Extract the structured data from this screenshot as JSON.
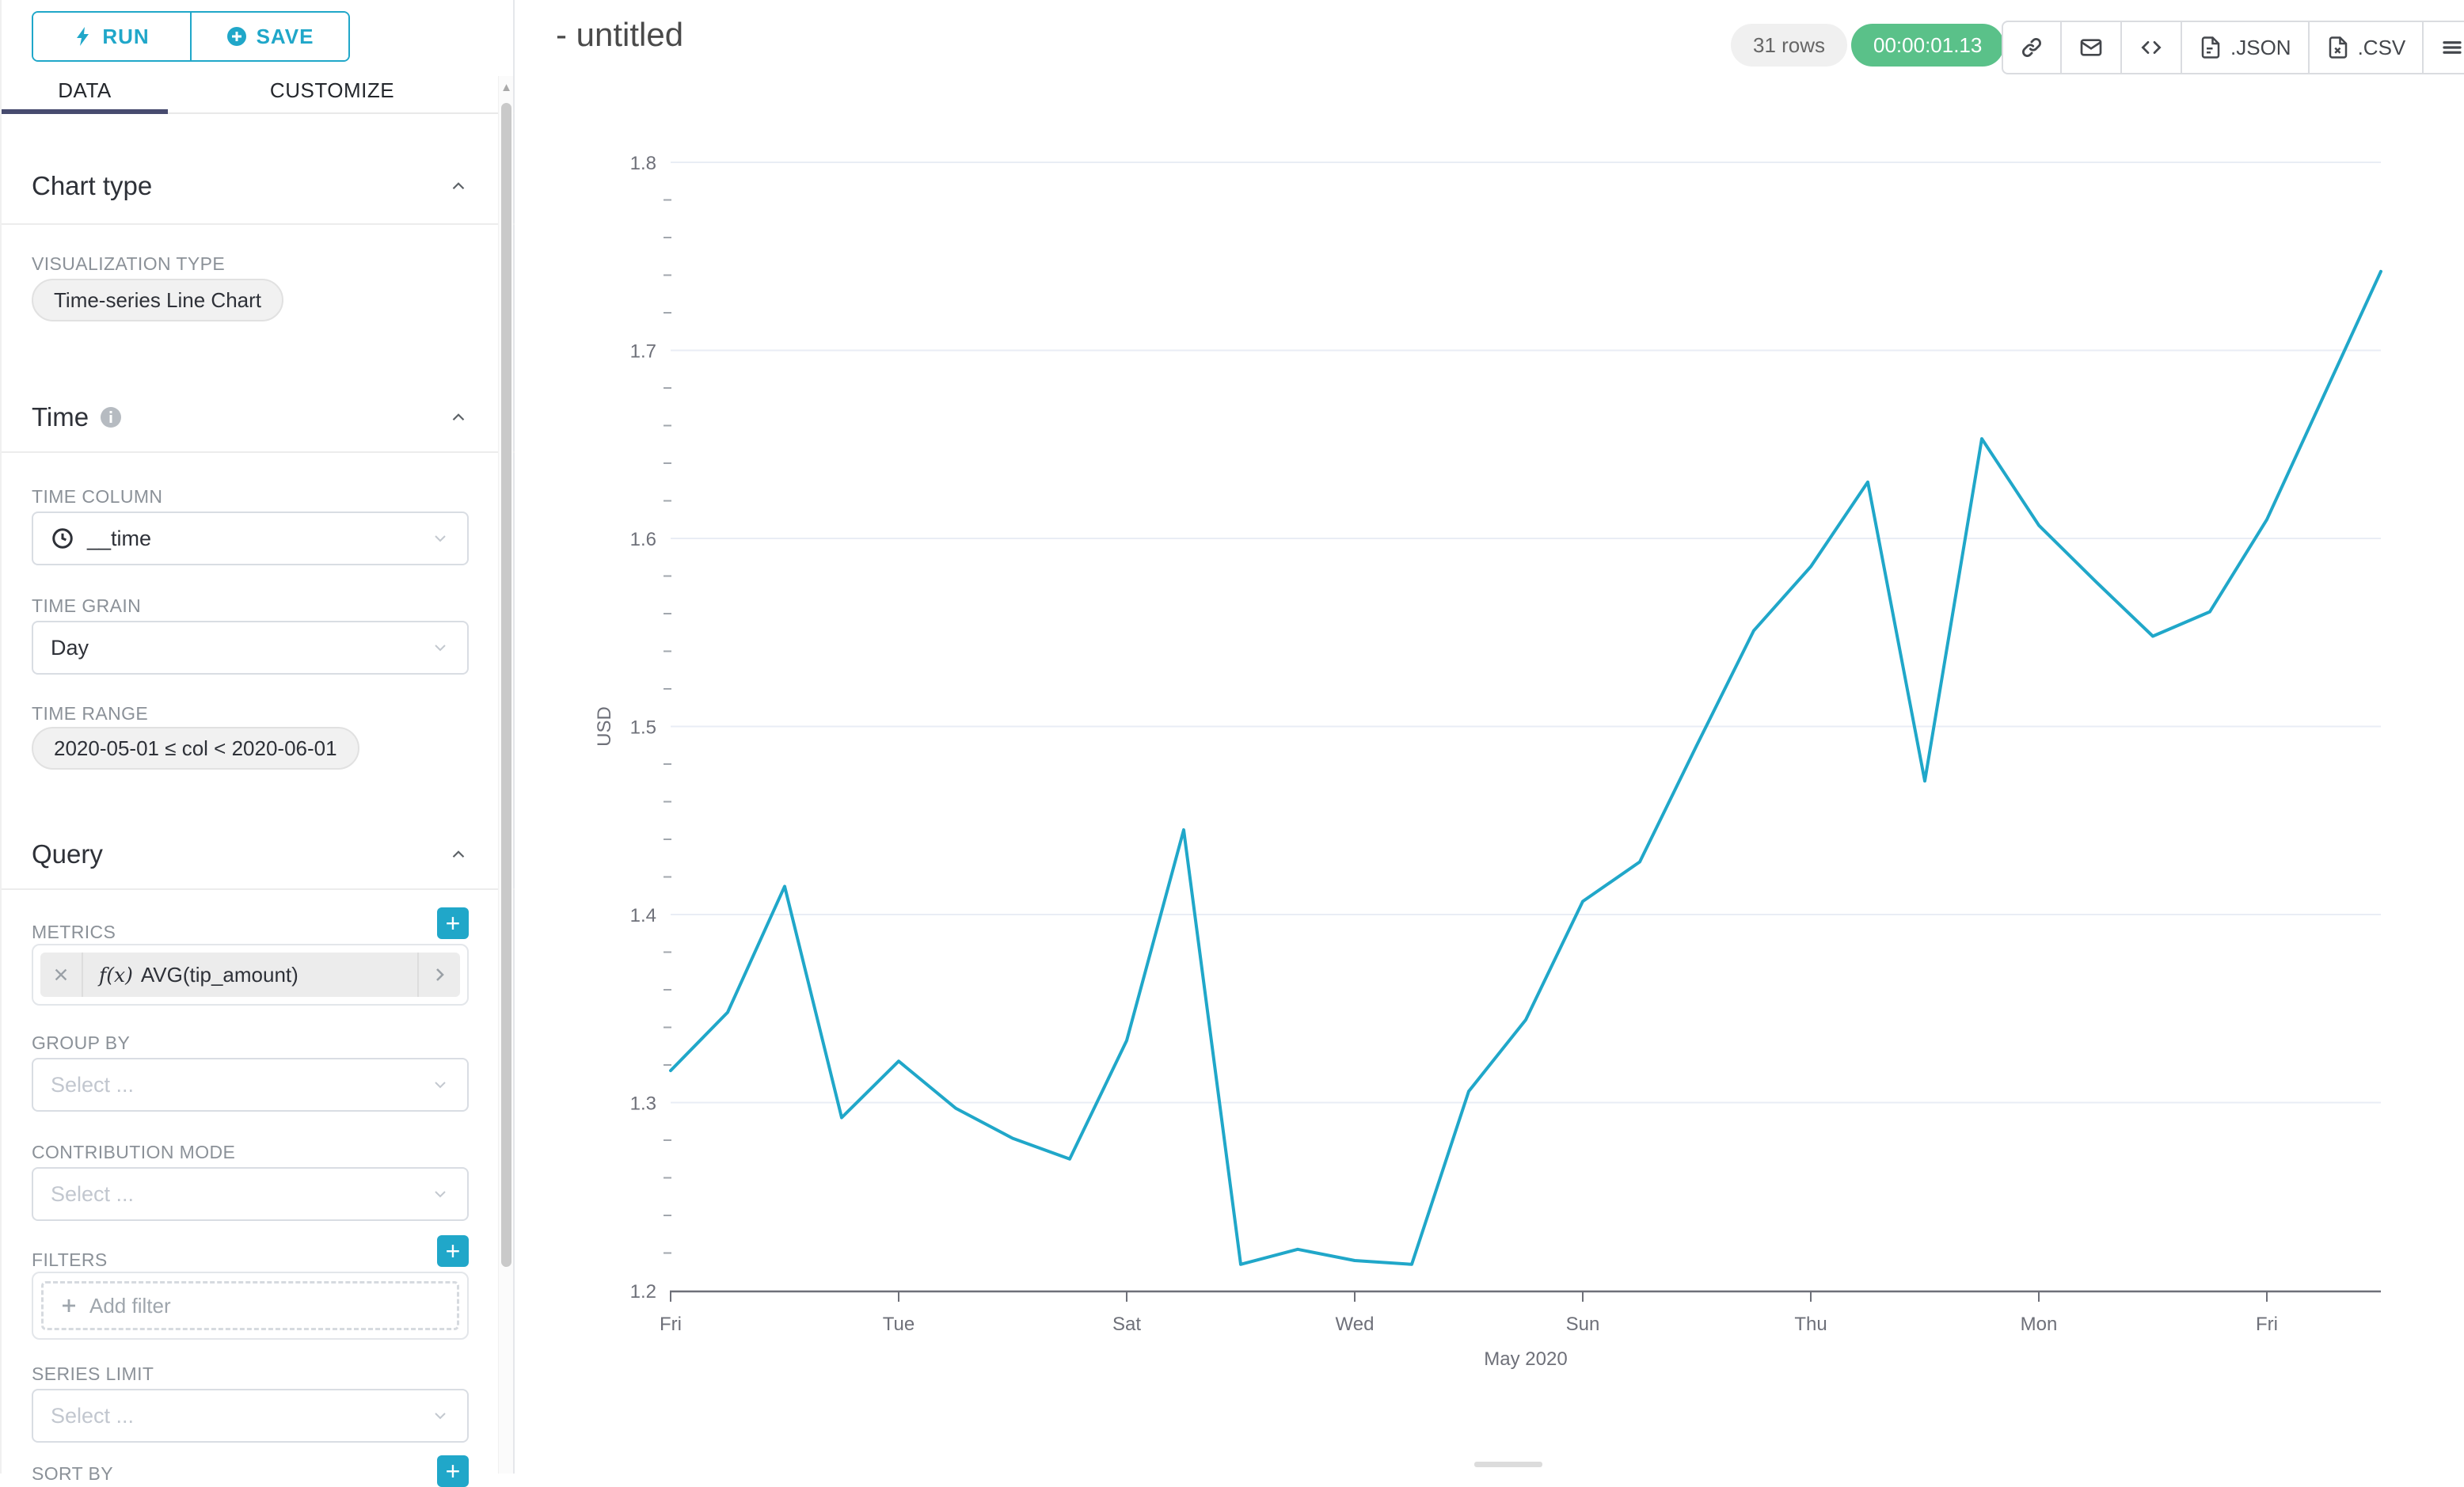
{
  "panel": {
    "run": "RUN",
    "save": "SAVE",
    "tabs": {
      "data": "DATA",
      "customize": "CUSTOMIZE"
    },
    "chart_type": {
      "title": "Chart type",
      "viz_label": "VISUALIZATION TYPE",
      "viz_value": "Time-series Line Chart"
    },
    "time": {
      "title": "Time",
      "col_label": "TIME COLUMN",
      "col_value": "__time",
      "grain_label": "TIME GRAIN",
      "grain_value": "Day",
      "range_label": "TIME RANGE",
      "range_value": "2020-05-01 ≤ col < 2020-06-01"
    },
    "query": {
      "title": "Query",
      "metrics_label": "METRICS",
      "metric_fx": "f(x)",
      "metric_value": "AVG(tip_amount)",
      "group_by_label": "GROUP BY",
      "group_by_placeholder": "Select ...",
      "contribution_label": "CONTRIBUTION MODE",
      "contribution_placeholder": "Select ...",
      "filters_label": "FILTERS",
      "add_filter": "Add filter",
      "series_limit_label": "SERIES LIMIT",
      "series_limit_placeholder": "Select ...",
      "sort_by_label": "SORT BY"
    }
  },
  "header": {
    "title": "- untitled",
    "rows_badge": "31 rows",
    "timer_badge": "00:00:01.13",
    "json_label": ".JSON",
    "csv_label": ".CSV"
  },
  "chart_data": {
    "type": "line",
    "title": "",
    "xlabel": "May 2020",
    "ylabel": "USD",
    "ylim": [
      1.2,
      1.8
    ],
    "y_major_step": 0.1,
    "y_minor_step": 0.02,
    "grid": "horizontal-only",
    "legend": false,
    "axis_color": "#6E7079",
    "grid_color": "#E9EDF5",
    "tick_label_color": "#6E7079",
    "x": [
      "2020-05-01",
      "2020-05-02",
      "2020-05-03",
      "2020-05-04",
      "2020-05-05",
      "2020-05-06",
      "2020-05-07",
      "2020-05-08",
      "2020-05-09",
      "2020-05-10",
      "2020-05-11",
      "2020-05-12",
      "2020-05-13",
      "2020-05-14",
      "2020-05-15",
      "2020-05-16",
      "2020-05-17",
      "2020-05-18",
      "2020-05-19",
      "2020-05-20",
      "2020-05-21",
      "2020-05-22",
      "2020-05-23",
      "2020-05-24",
      "2020-05-25",
      "2020-05-26",
      "2020-05-27",
      "2020-05-28",
      "2020-05-29",
      "2020-05-30",
      "2020-05-31"
    ],
    "x_ticks": [
      {
        "index": 0,
        "label": "Fri"
      },
      {
        "index": 4,
        "label": "Tue"
      },
      {
        "index": 8,
        "label": "Sat"
      },
      {
        "index": 12,
        "label": "Wed"
      },
      {
        "index": 16,
        "label": "Sun"
      },
      {
        "index": 20,
        "label": "Thu"
      },
      {
        "index": 24,
        "label": "Mon"
      },
      {
        "index": 28,
        "label": "Fri"
      }
    ],
    "series": [
      {
        "name": "AVG(tip_amount)",
        "color": "#20A7C9",
        "values": [
          1.317,
          1.348,
          1.415,
          1.292,
          1.322,
          1.297,
          1.281,
          1.27,
          1.333,
          1.445,
          1.214,
          1.222,
          1.216,
          1.214,
          1.306,
          1.344,
          1.407,
          1.428,
          1.49,
          1.551,
          1.585,
          1.63,
          1.471,
          1.653,
          1.607,
          1.577,
          1.548,
          1.561,
          1.61,
          1.676,
          1.742
        ]
      }
    ]
  }
}
